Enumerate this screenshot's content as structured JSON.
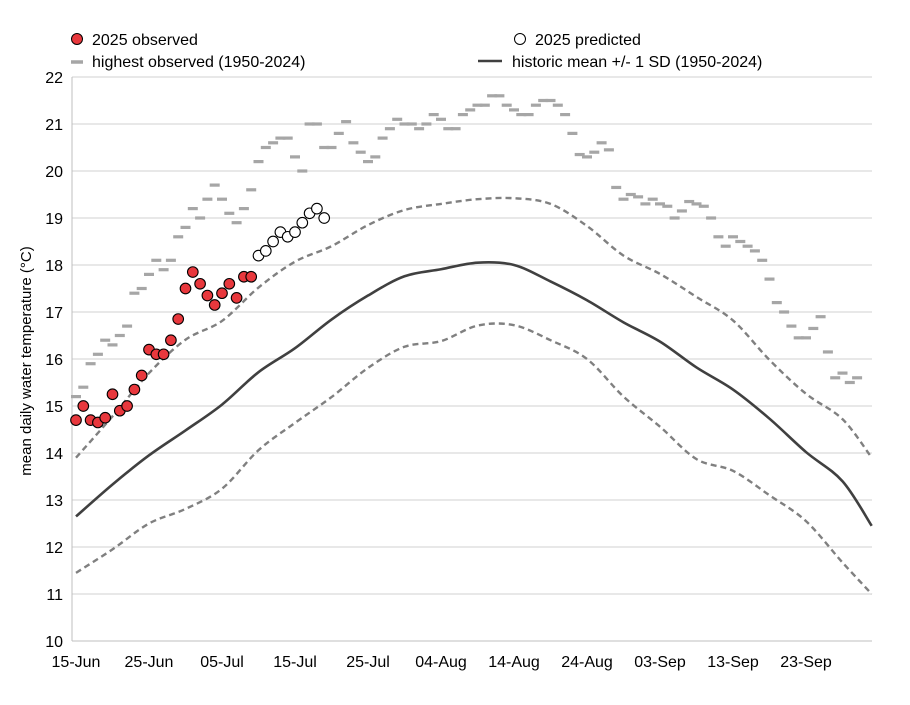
{
  "chart_data": {
    "type": "line",
    "ylabel": "mean daily water temperature (°C)",
    "xlabel": "",
    "ylim": [
      10,
      22
    ],
    "yticks": [
      10,
      11,
      12,
      13,
      14,
      15,
      16,
      17,
      18,
      19,
      20,
      21,
      22
    ],
    "xlim": [
      "15-Jun",
      "02-Oct"
    ],
    "xticks": [
      "15-Jun",
      "25-Jun",
      "05-Jul",
      "15-Jul",
      "25-Jul",
      "04-Aug",
      "14-Aug",
      "24-Aug",
      "03-Sep",
      "13-Sep",
      "23-Sep"
    ],
    "grid": "horizontal",
    "legend": {
      "placement": "top",
      "entries": [
        "2025 observed",
        "2025 predicted",
        "highest observed (1950-2024)",
        "historic mean +/- 1 SD (1950-2024)"
      ]
    },
    "colors": {
      "observed": "#e8383d",
      "predicted": "#ffffff",
      "highest": "#a6a6a6",
      "mean": "#404040",
      "sd": "#808080",
      "grid": "#d9d9d9"
    },
    "series": [
      {
        "name": "2025 observed",
        "style": "filled-circle",
        "x": [
          "15-Jun",
          "16-Jun",
          "17-Jun",
          "18-Jun",
          "19-Jun",
          "20-Jun",
          "21-Jun",
          "22-Jun",
          "23-Jun",
          "24-Jun",
          "25-Jun",
          "26-Jun",
          "27-Jun",
          "28-Jun",
          "29-Jun",
          "30-Jun",
          "01-Jul",
          "02-Jul",
          "03-Jul",
          "04-Jul",
          "05-Jul",
          "06-Jul",
          "07-Jul",
          "08-Jul",
          "09-Jul"
        ],
        "values": [
          14.7,
          15.0,
          14.7,
          14.65,
          14.75,
          15.25,
          14.9,
          15.0,
          15.35,
          15.65,
          16.2,
          16.1,
          16.1,
          16.4,
          16.85,
          17.5,
          17.85,
          17.6,
          17.35,
          17.15,
          17.4,
          17.6,
          17.3,
          17.75,
          17.75
        ]
      },
      {
        "name": "2025 predicted",
        "style": "open-circle",
        "x": [
          "10-Jul",
          "11-Jul",
          "12-Jul",
          "13-Jul",
          "14-Jul",
          "15-Jul",
          "16-Jul",
          "17-Jul",
          "18-Jul",
          "19-Jul"
        ],
        "values": [
          18.2,
          18.3,
          18.5,
          18.7,
          18.6,
          18.7,
          18.9,
          19.1,
          19.2,
          19.0
        ]
      },
      {
        "name": "highest observed (1950-2024)",
        "style": "dash-marker",
        "x": [
          "15-Jun",
          "16-Jun",
          "17-Jun",
          "18-Jun",
          "19-Jun",
          "20-Jun",
          "21-Jun",
          "22-Jun",
          "23-Jun",
          "24-Jun",
          "25-Jun",
          "26-Jun",
          "27-Jun",
          "28-Jun",
          "29-Jun",
          "30-Jun",
          "01-Jul",
          "02-Jul",
          "03-Jul",
          "04-Jul",
          "05-Jul",
          "06-Jul",
          "07-Jul",
          "08-Jul",
          "09-Jul",
          "10-Jul",
          "11-Jul",
          "12-Jul",
          "13-Jul",
          "14-Jul",
          "15-Jul",
          "16-Jul",
          "17-Jul",
          "18-Jul",
          "19-Jul",
          "20-Jul",
          "21-Jul",
          "22-Jul",
          "23-Jul",
          "24-Jul",
          "25-Jul",
          "26-Jul",
          "27-Jul",
          "28-Jul",
          "29-Jul",
          "30-Jul",
          "31-Jul",
          "01-Aug",
          "02-Aug",
          "03-Aug",
          "04-Aug",
          "05-Aug",
          "06-Aug",
          "07-Aug",
          "08-Aug",
          "09-Aug",
          "10-Aug",
          "11-Aug",
          "12-Aug",
          "13-Aug",
          "14-Aug",
          "15-Aug",
          "16-Aug",
          "17-Aug",
          "18-Aug",
          "19-Aug",
          "20-Aug",
          "21-Aug",
          "22-Aug",
          "23-Aug",
          "24-Aug",
          "25-Aug",
          "26-Aug",
          "27-Aug",
          "28-Aug",
          "29-Aug",
          "30-Aug",
          "31-Aug",
          "01-Sep",
          "02-Sep",
          "03-Sep",
          "04-Sep",
          "05-Sep",
          "06-Sep",
          "07-Sep",
          "08-Sep",
          "09-Sep",
          "10-Sep",
          "11-Sep",
          "12-Sep",
          "13-Sep",
          "14-Sep",
          "15-Sep",
          "16-Sep",
          "17-Sep",
          "18-Sep",
          "19-Sep",
          "20-Sep",
          "21-Sep",
          "22-Sep",
          "23-Sep",
          "24-Sep",
          "25-Sep",
          "26-Sep",
          "27-Sep",
          "28-Sep",
          "29-Sep",
          "30-Sep"
        ],
        "values": [
          15.2,
          15.4,
          15.9,
          16.1,
          16.4,
          16.3,
          16.5,
          16.7,
          17.4,
          17.5,
          17.8,
          18.1,
          17.9,
          18.1,
          18.6,
          18.8,
          19.2,
          19.0,
          19.4,
          19.7,
          19.4,
          19.1,
          18.9,
          19.2,
          19.6,
          20.2,
          20.5,
          20.6,
          20.7,
          20.7,
          20.3,
          20.0,
          21.0,
          21.0,
          20.5,
          20.5,
          20.8,
          21.05,
          20.6,
          20.4,
          20.2,
          20.3,
          20.7,
          20.9,
          21.1,
          21.0,
          21.0,
          20.9,
          21.0,
          21.2,
          21.1,
          20.9,
          20.9,
          21.2,
          21.3,
          21.4,
          21.4,
          21.6,
          21.6,
          21.4,
          21.3,
          21.2,
          21.2,
          21.4,
          21.5,
          21.5,
          21.4,
          21.2,
          20.8,
          20.35,
          20.3,
          20.4,
          20.6,
          20.45,
          19.65,
          19.4,
          19.5,
          19.45,
          19.3,
          19.4,
          19.3,
          19.25,
          19.0,
          19.15,
          19.35,
          19.3,
          19.25,
          19.0,
          18.6,
          18.4,
          18.6,
          18.5,
          18.4,
          18.3,
          18.1,
          17.7,
          17.2,
          17.0,
          16.7,
          16.45,
          16.45,
          16.65,
          16.9,
          16.15,
          15.6,
          15.7,
          15.5,
          15.6
        ]
      },
      {
        "name": "historic mean +/- 1 SD (1950-2024)",
        "style": "solid",
        "x": [
          "15-Jun",
          "20-Jun",
          "25-Jun",
          "30-Jun",
          "05-Jul",
          "10-Jul",
          "15-Jul",
          "20-Jul",
          "25-Jul",
          "30-Jul",
          "04-Aug",
          "09-Aug",
          "14-Aug",
          "19-Aug",
          "24-Aug",
          "29-Aug",
          "03-Sep",
          "08-Sep",
          "13-Sep",
          "18-Sep",
          "23-Sep",
          "28-Sep",
          "02-Oct"
        ],
        "values": [
          12.65,
          13.33,
          13.95,
          14.48,
          15.03,
          15.72,
          16.23,
          16.84,
          17.35,
          17.76,
          17.91,
          18.05,
          18.0,
          17.65,
          17.25,
          16.78,
          16.37,
          15.82,
          15.35,
          14.73,
          14.02,
          13.4,
          12.45
        ]
      },
      {
        "style": "dashed",
        "role": "mean + 1 SD",
        "x": [
          "15-Jun",
          "20-Jun",
          "25-Jun",
          "30-Jun",
          "05-Jul",
          "10-Jul",
          "15-Jul",
          "20-Jul",
          "25-Jul",
          "30-Jul",
          "04-Aug",
          "09-Aug",
          "14-Aug",
          "19-Aug",
          "24-Aug",
          "29-Aug",
          "03-Sep",
          "08-Sep",
          "13-Sep",
          "18-Sep",
          "23-Sep",
          "28-Sep",
          "02-Oct"
        ],
        "values": [
          13.9,
          14.78,
          15.7,
          16.41,
          16.81,
          17.52,
          18.07,
          18.4,
          18.85,
          19.17,
          19.3,
          19.4,
          19.42,
          19.3,
          18.83,
          18.2,
          17.81,
          17.32,
          16.82,
          15.98,
          15.26,
          14.72,
          13.9
        ]
      },
      {
        "style": "dashed",
        "role": "mean - 1 SD",
        "x": [
          "15-Jun",
          "20-Jun",
          "25-Jun",
          "30-Jun",
          "05-Jul",
          "10-Jul",
          "15-Jul",
          "20-Jul",
          "25-Jul",
          "30-Jul",
          "04-Aug",
          "09-Aug",
          "14-Aug",
          "19-Aug",
          "24-Aug",
          "29-Aug",
          "03-Sep",
          "08-Sep",
          "13-Sep",
          "18-Sep",
          "23-Sep",
          "28-Sep",
          "02-Oct"
        ],
        "values": [
          11.45,
          11.95,
          12.5,
          12.81,
          13.24,
          14.06,
          14.64,
          15.19,
          15.81,
          16.26,
          16.38,
          16.71,
          16.72,
          16.4,
          16.0,
          15.2,
          14.56,
          13.87,
          13.62,
          13.1,
          12.55,
          11.67,
          11.0
        ]
      }
    ]
  }
}
